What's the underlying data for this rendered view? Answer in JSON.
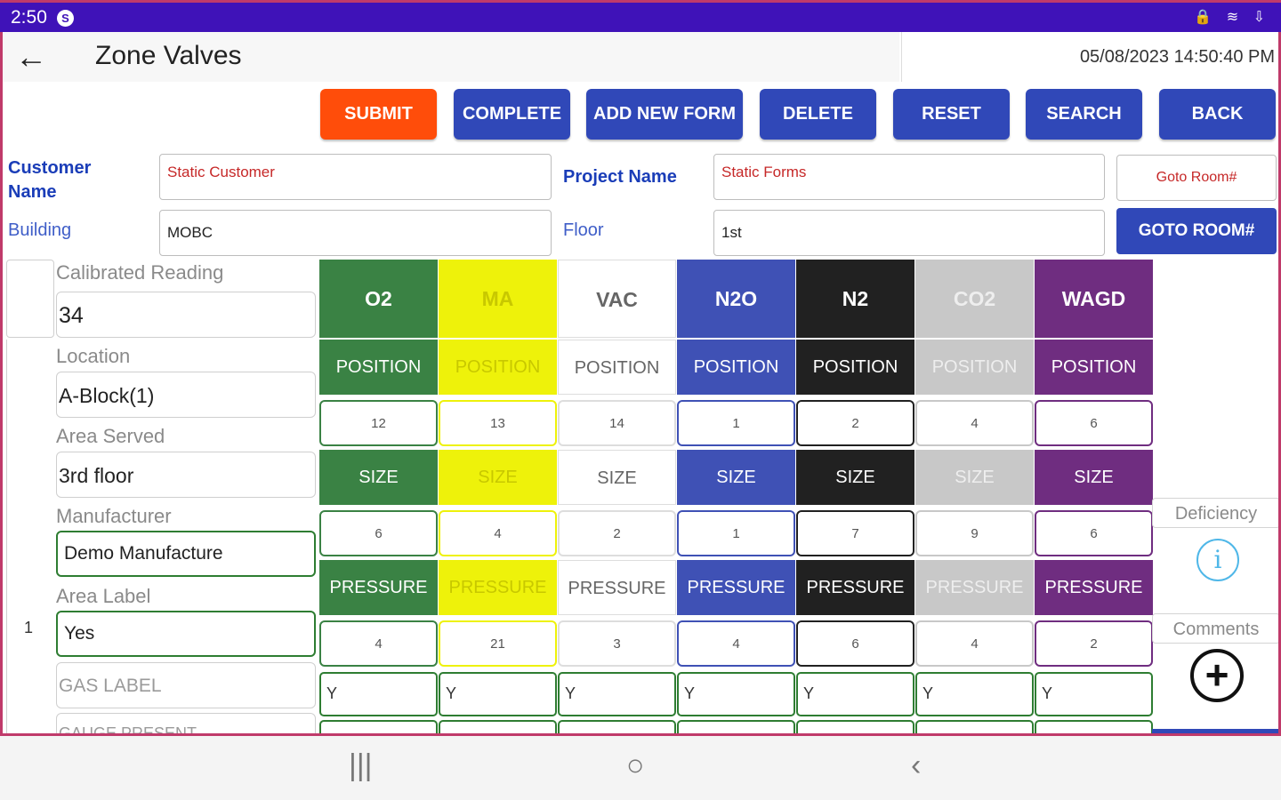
{
  "status": {
    "time": "2:50",
    "app_icon": "S",
    "right_icons": "🔒 ≋ ⇩"
  },
  "appbar": {
    "title": "Zone Valves",
    "datetime": "05/08/2023 14:50:40 PM"
  },
  "buttons": {
    "submit": "SUBMIT",
    "complete": "COMPLETE",
    "add_new_form": "ADD NEW FORM",
    "delete": "DELETE",
    "reset": "RESET",
    "search": "SEARCH",
    "back": "BACK"
  },
  "form": {
    "customer_label_1": "Customer",
    "customer_label_2": "Name",
    "customer_value": "Static Customer",
    "project_label": "Project Name",
    "project_value": "Static Forms",
    "building_label": "Building",
    "building_value": "MOBC",
    "floor_label": "Floor",
    "floor_value": "1st",
    "goto_placeholder": "Goto Room#",
    "goto_button": "GOTO ROOM#"
  },
  "left": {
    "row_number": "1",
    "calibrated_label": "Calibrated Reading",
    "calibrated_value": "34",
    "location_label": "Location",
    "location_value": "A-Block(1)",
    "area_served_label": "Area Served",
    "area_served_value": "3rd floor",
    "manufacturer_label": "Manufacturer",
    "manufacturer_value": "Demo Manufacture",
    "area_label_label": "Area Label",
    "area_label_value": "Yes",
    "gas_label_placeholder": "GAS LABEL",
    "gauge_present_label": "GAUGE PRESENT"
  },
  "grid_labels": {
    "position": "POSITION",
    "size": "SIZE",
    "pressure": "PRESSURE"
  },
  "gases": [
    {
      "name": "O2",
      "color": "#3a8244",
      "text": "#ffffff",
      "position": "12",
      "size": "6",
      "pressure": "4",
      "gas_label": "Y"
    },
    {
      "name": "MA",
      "color": "#eef20a",
      "text": "#c8c800",
      "position": "13",
      "size": "4",
      "pressure": "21",
      "gas_label": "Y"
    },
    {
      "name": "VAC",
      "color": "#ffffff",
      "text": "#666666",
      "position": "14",
      "size": "2",
      "pressure": "3",
      "gas_label": "Y"
    },
    {
      "name": "N2O",
      "color": "#3f51b5",
      "text": "#ffffff",
      "position": "1",
      "size": "1",
      "pressure": "4",
      "gas_label": "Y"
    },
    {
      "name": "N2",
      "color": "#212121",
      "text": "#ffffff",
      "position": "2",
      "size": "7",
      "pressure": "6",
      "gas_label": "Y"
    },
    {
      "name": "CO2",
      "color": "#c8c8c8",
      "text": "#eeeeee",
      "position": "4",
      "size": "9",
      "pressure": "4",
      "gas_label": "Y"
    },
    {
      "name": "WAGD",
      "color": "#6f2d80",
      "text": "#ffffff",
      "position": "6",
      "size": "6",
      "pressure": "2",
      "gas_label": "Y"
    }
  ],
  "side": {
    "deficiency": "Deficiency",
    "comments": "Comments"
  },
  "nav": {
    "recent": "|||",
    "home": "○",
    "back": "‹"
  }
}
